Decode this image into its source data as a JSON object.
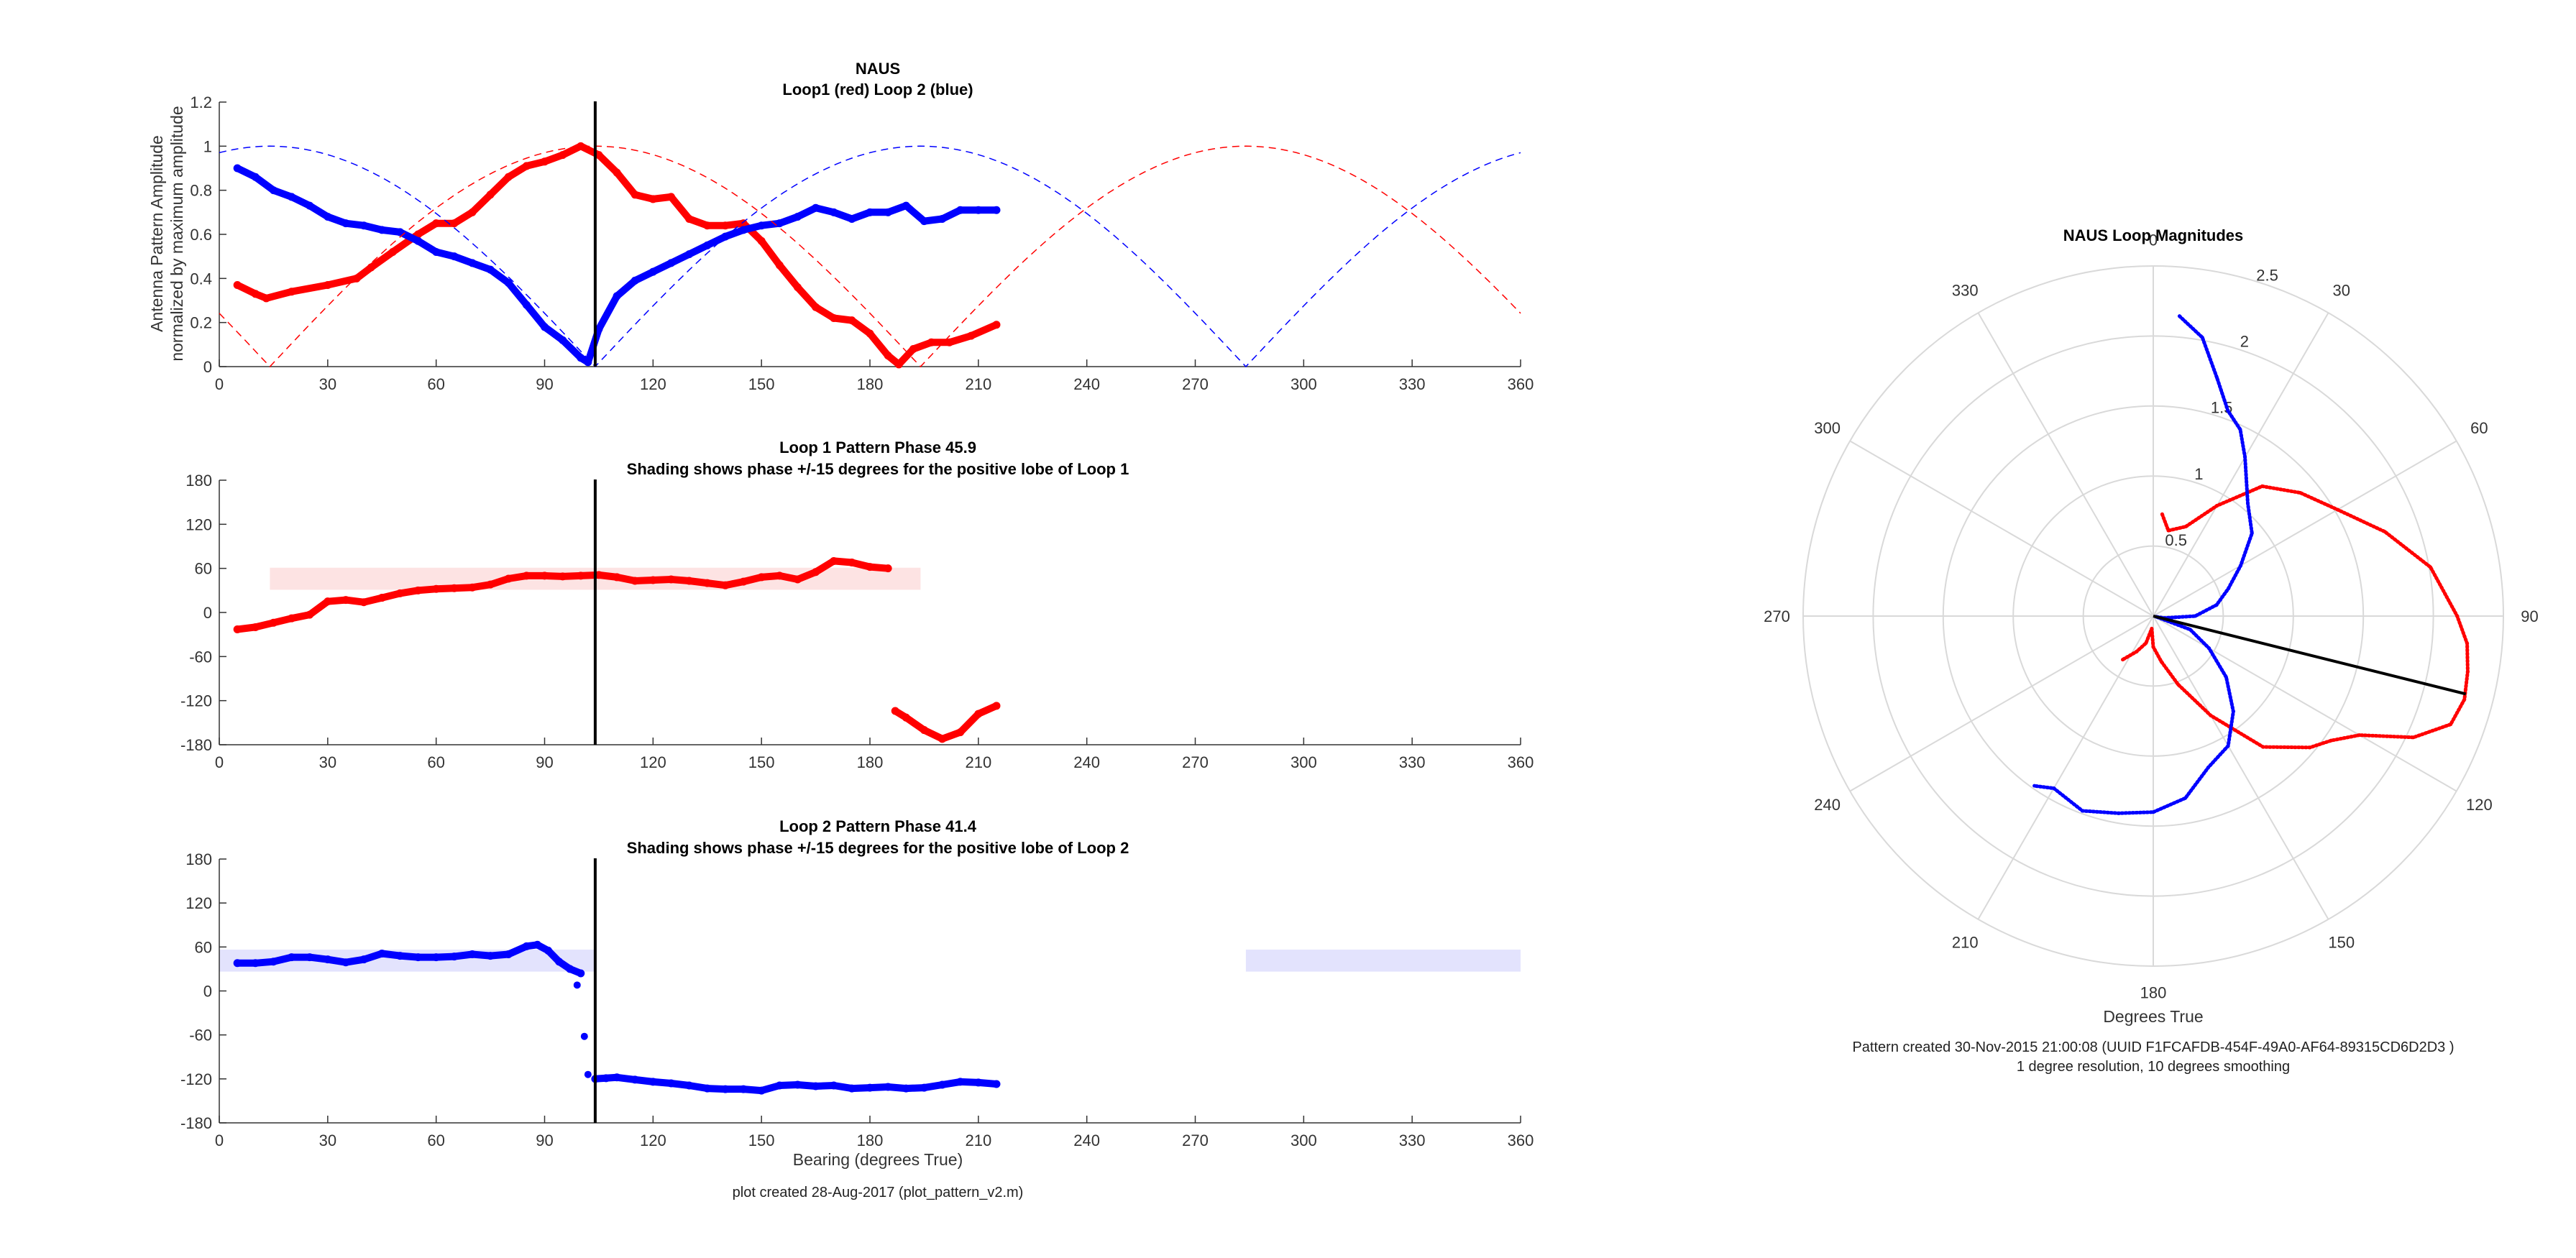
{
  "chart_data": [
    {
      "id": "amplitude",
      "type": "line",
      "title": "NAUS",
      "subtitle": "Loop1 (red) Loop 2 (blue)",
      "ylabel": "Antenna Pattern Amplitude",
      "ylabel2": "normalized by maximum amplitude",
      "xlabel": "",
      "xlim": [
        0,
        360
      ],
      "ylim": [
        0,
        1.2
      ],
      "xticks": [
        "0",
        "30",
        "60",
        "90",
        "120",
        "150",
        "180",
        "210",
        "240",
        "270",
        "300",
        "330",
        "360"
      ],
      "yticks": [
        "0",
        "0.2",
        "0.4",
        "0.6",
        "0.8",
        "1",
        "1.2"
      ],
      "bearing_marker": 104,
      "colors": {
        "loop1": "#ff0000",
        "loop2": "#0000ff"
      },
      "series": [
        {
          "name": "Loop1",
          "color": "#ff0000",
          "style": "thick-dots",
          "x": [
            5,
            10,
            13,
            20,
            30,
            38,
            42,
            48,
            55,
            60,
            65,
            70,
            75,
            80,
            85,
            90,
            95,
            100,
            105,
            110,
            115,
            120,
            125,
            130,
            135,
            140,
            145,
            150,
            155,
            160,
            165,
            170,
            175,
            180,
            185,
            188,
            192,
            197,
            202,
            208,
            215
          ],
          "y": [
            0.37,
            0.33,
            0.31,
            0.34,
            0.37,
            0.4,
            0.45,
            0.52,
            0.6,
            0.65,
            0.65,
            0.7,
            0.78,
            0.86,
            0.91,
            0.93,
            0.96,
            1.0,
            0.96,
            0.88,
            0.78,
            0.76,
            0.77,
            0.67,
            0.64,
            0.64,
            0.65,
            0.57,
            0.46,
            0.36,
            0.27,
            0.22,
            0.21,
            0.15,
            0.05,
            0.01,
            0.08,
            0.11,
            0.11,
            0.14,
            0.19
          ]
        },
        {
          "name": "Loop 2",
          "color": "#0000ff",
          "style": "thick-dots",
          "x": [
            5,
            10,
            15,
            20,
            25,
            30,
            35,
            40,
            45,
            50,
            55,
            60,
            65,
            70,
            75,
            80,
            85,
            90,
            95,
            100,
            102,
            105,
            110,
            115,
            120,
            125,
            130,
            135,
            140,
            145,
            150,
            155,
            160,
            165,
            170,
            175,
            180,
            185,
            190,
            195,
            200,
            205,
            210,
            215
          ],
          "y": [
            0.9,
            0.86,
            0.8,
            0.77,
            0.73,
            0.68,
            0.65,
            0.64,
            0.62,
            0.61,
            0.57,
            0.52,
            0.5,
            0.47,
            0.44,
            0.38,
            0.28,
            0.18,
            0.12,
            0.04,
            0.02,
            0.17,
            0.32,
            0.39,
            0.43,
            0.47,
            0.51,
            0.55,
            0.59,
            0.62,
            0.64,
            0.65,
            0.68,
            0.72,
            0.7,
            0.67,
            0.7,
            0.7,
            0.73,
            0.66,
            0.67,
            0.71,
            0.71,
            0.71
          ]
        },
        {
          "name": "Loop1 model",
          "color": "#ff0000",
          "style": "dashed",
          "model_peak": 104,
          "model_period": 180
        },
        {
          "name": "Loop2 model",
          "color": "#0000ff",
          "style": "dashed",
          "model_peak": 14,
          "model_period": 180
        }
      ]
    },
    {
      "id": "phase1",
      "type": "line",
      "title": "Loop 1 Pattern Phase 45.9",
      "subtitle": "Shading shows phase +/-15 degrees for the positive lobe of Loop 1",
      "xlabel": "",
      "ylabel": "",
      "xlim": [
        0,
        360
      ],
      "ylim": [
        -180,
        180
      ],
      "xticks": [
        "0",
        "30",
        "60",
        "90",
        "120",
        "150",
        "180",
        "210",
        "240",
        "270",
        "300",
        "330",
        "360"
      ],
      "yticks": [
        "-180",
        "-120",
        "-60",
        "0",
        "60",
        "120",
        "180"
      ],
      "bearing_marker": 104,
      "shading": [
        {
          "x0": 14,
          "x1": 194,
          "y0": 30.9,
          "y1": 60.9,
          "color": "#fde3e3"
        }
      ],
      "series": [
        {
          "name": "Loop 1 phase",
          "color": "#ff0000",
          "style": "thick-dots",
          "x": [
            5,
            10,
            15,
            20,
            25,
            30,
            35,
            40,
            45,
            50,
            55,
            60,
            65,
            70,
            75,
            80,
            85,
            90,
            95,
            100,
            105,
            110,
            115,
            120,
            125,
            130,
            135,
            140,
            145,
            150,
            155,
            160,
            165,
            170,
            175,
            180,
            185
          ],
          "y": [
            -23,
            -20,
            -14,
            -8,
            -3,
            15,
            17,
            14,
            20,
            26,
            30,
            32,
            33,
            34,
            38,
            46,
            50,
            50,
            49,
            50,
            51,
            48,
            43,
            44,
            45,
            43,
            40,
            37,
            42,
            48,
            50,
            45,
            55,
            70,
            68,
            62,
            60
          ]
        },
        {
          "name": "Loop 1 phase (wrapped)",
          "color": "#ff0000",
          "style": "thick-dots",
          "x": [
            187,
            190,
            195,
            200,
            205,
            210,
            215
          ],
          "y": [
            -134,
            -143,
            -160,
            -172,
            -163,
            -138,
            -127
          ]
        }
      ]
    },
    {
      "id": "phase2",
      "type": "line",
      "title": "Loop 2 Pattern Phase 41.4",
      "subtitle": "Shading shows phase +/-15 degrees for the positive lobe of Loop 2",
      "xlabel": "Bearing (degrees True)",
      "ylabel": "",
      "xlim": [
        0,
        360
      ],
      "ylim": [
        -180,
        180
      ],
      "xticks": [
        "0",
        "30",
        "60",
        "90",
        "120",
        "150",
        "180",
        "210",
        "240",
        "270",
        "300",
        "330",
        "360"
      ],
      "yticks": [
        "-180",
        "-120",
        "-60",
        "0",
        "60",
        "120",
        "180"
      ],
      "bearing_marker": 104,
      "shading": [
        {
          "x0": 0,
          "x1": 104,
          "y0": 26.4,
          "y1": 56.4,
          "color": "#e3e3fd"
        },
        {
          "x0": 284,
          "x1": 360,
          "y0": 26.4,
          "y1": 56.4,
          "color": "#e3e3fd"
        }
      ],
      "series": [
        {
          "name": "Loop 2 phase",
          "color": "#0000ff",
          "style": "thick-dots",
          "x": [
            5,
            10,
            15,
            20,
            25,
            30,
            35,
            40,
            45,
            50,
            55,
            60,
            65,
            70,
            75,
            80,
            85,
            88,
            91,
            94,
            97,
            100
          ],
          "y": [
            38,
            38,
            40,
            46,
            46,
            43,
            39,
            43,
            51,
            48,
            46,
            46,
            47,
            50,
            48,
            50,
            61,
            63,
            55,
            40,
            30,
            24
          ]
        },
        {
          "name": "Loop 2 phase (sparse)",
          "color": "#0000ff",
          "style": "dots",
          "x": [
            99,
            101,
            102
          ],
          "y": [
            8,
            -62,
            -114
          ]
        },
        {
          "name": "Loop 2 phase (low)",
          "color": "#0000ff",
          "style": "thick-dots",
          "x": [
            104,
            107,
            110,
            115,
            120,
            125,
            130,
            135,
            140,
            145,
            150,
            155,
            160,
            165,
            170,
            175,
            180,
            185,
            190,
            195,
            200,
            205,
            210,
            215
          ],
          "y": [
            -120,
            -119,
            -118,
            -121,
            -124,
            -126,
            -129,
            -133,
            -134,
            -134,
            -136,
            -129,
            -128,
            -130,
            -129,
            -133,
            -132,
            -131,
            -133,
            -132,
            -128,
            -124,
            -125,
            -127
          ]
        }
      ]
    },
    {
      "id": "polar",
      "type": "polar",
      "title": "NAUS Loop Magnitudes",
      "xlabel": "Degrees True",
      "note1": "Pattern created 30-Nov-2015 21:00:08 (UUID F1FCAFDB-454F-49A0-AF64-89315CD6D2D3 )",
      "note2": "1 degree resolution, 10 degrees smoothing",
      "rlim": [
        0,
        2.5
      ],
      "rticks": [
        "0.5",
        "1",
        "1.5",
        "2",
        "2.5"
      ],
      "thetaticks": [
        "0",
        "30",
        "60",
        "90",
        "120",
        "150",
        "180",
        "210",
        "240",
        "270",
        "300",
        "330"
      ],
      "bearing_marker": 104,
      "series": [
        {
          "name": "Loop1",
          "color": "#ff0000",
          "theta": [
            5,
            10,
            20,
            30,
            40,
            50,
            60,
            70,
            80,
            90,
            95,
            100,
            105,
            110,
            115,
            120,
            125,
            130,
            140,
            150,
            160,
            170,
            180,
            187,
            195,
            205,
            215
          ],
          "r": [
            0.73,
            0.62,
            0.68,
            0.91,
            1.21,
            1.37,
            1.52,
            1.76,
            2.01,
            2.17,
            2.25,
            2.28,
            2.3,
            2.26,
            2.05,
            1.7,
            1.55,
            1.46,
            1.22,
            0.82,
            0.52,
            0.33,
            0.22,
            0.09,
            0.2,
            0.28,
            0.38
          ]
        },
        {
          "name": "Loop 2",
          "color": "#0000ff",
          "theta": [
            5,
            10,
            15,
            20,
            25,
            30,
            40,
            50,
            60,
            70,
            80,
            90,
            100,
            104,
            110,
            120,
            130,
            140,
            150,
            160,
            170,
            180,
            190,
            200,
            210,
            215
          ],
          "r": [
            2.15,
            2.02,
            1.76,
            1.56,
            1.47,
            1.31,
            1.05,
            0.92,
            0.72,
            0.57,
            0.46,
            0.3,
            0.08,
            0.02,
            0.28,
            0.46,
            0.68,
            0.89,
            1.07,
            1.15,
            1.32,
            1.4,
            1.43,
            1.48,
            1.42,
            1.48
          ]
        }
      ]
    }
  ],
  "footer": {
    "plot_note": "plot created 28-Aug-2017 (plot_pattern_v2.m)"
  }
}
